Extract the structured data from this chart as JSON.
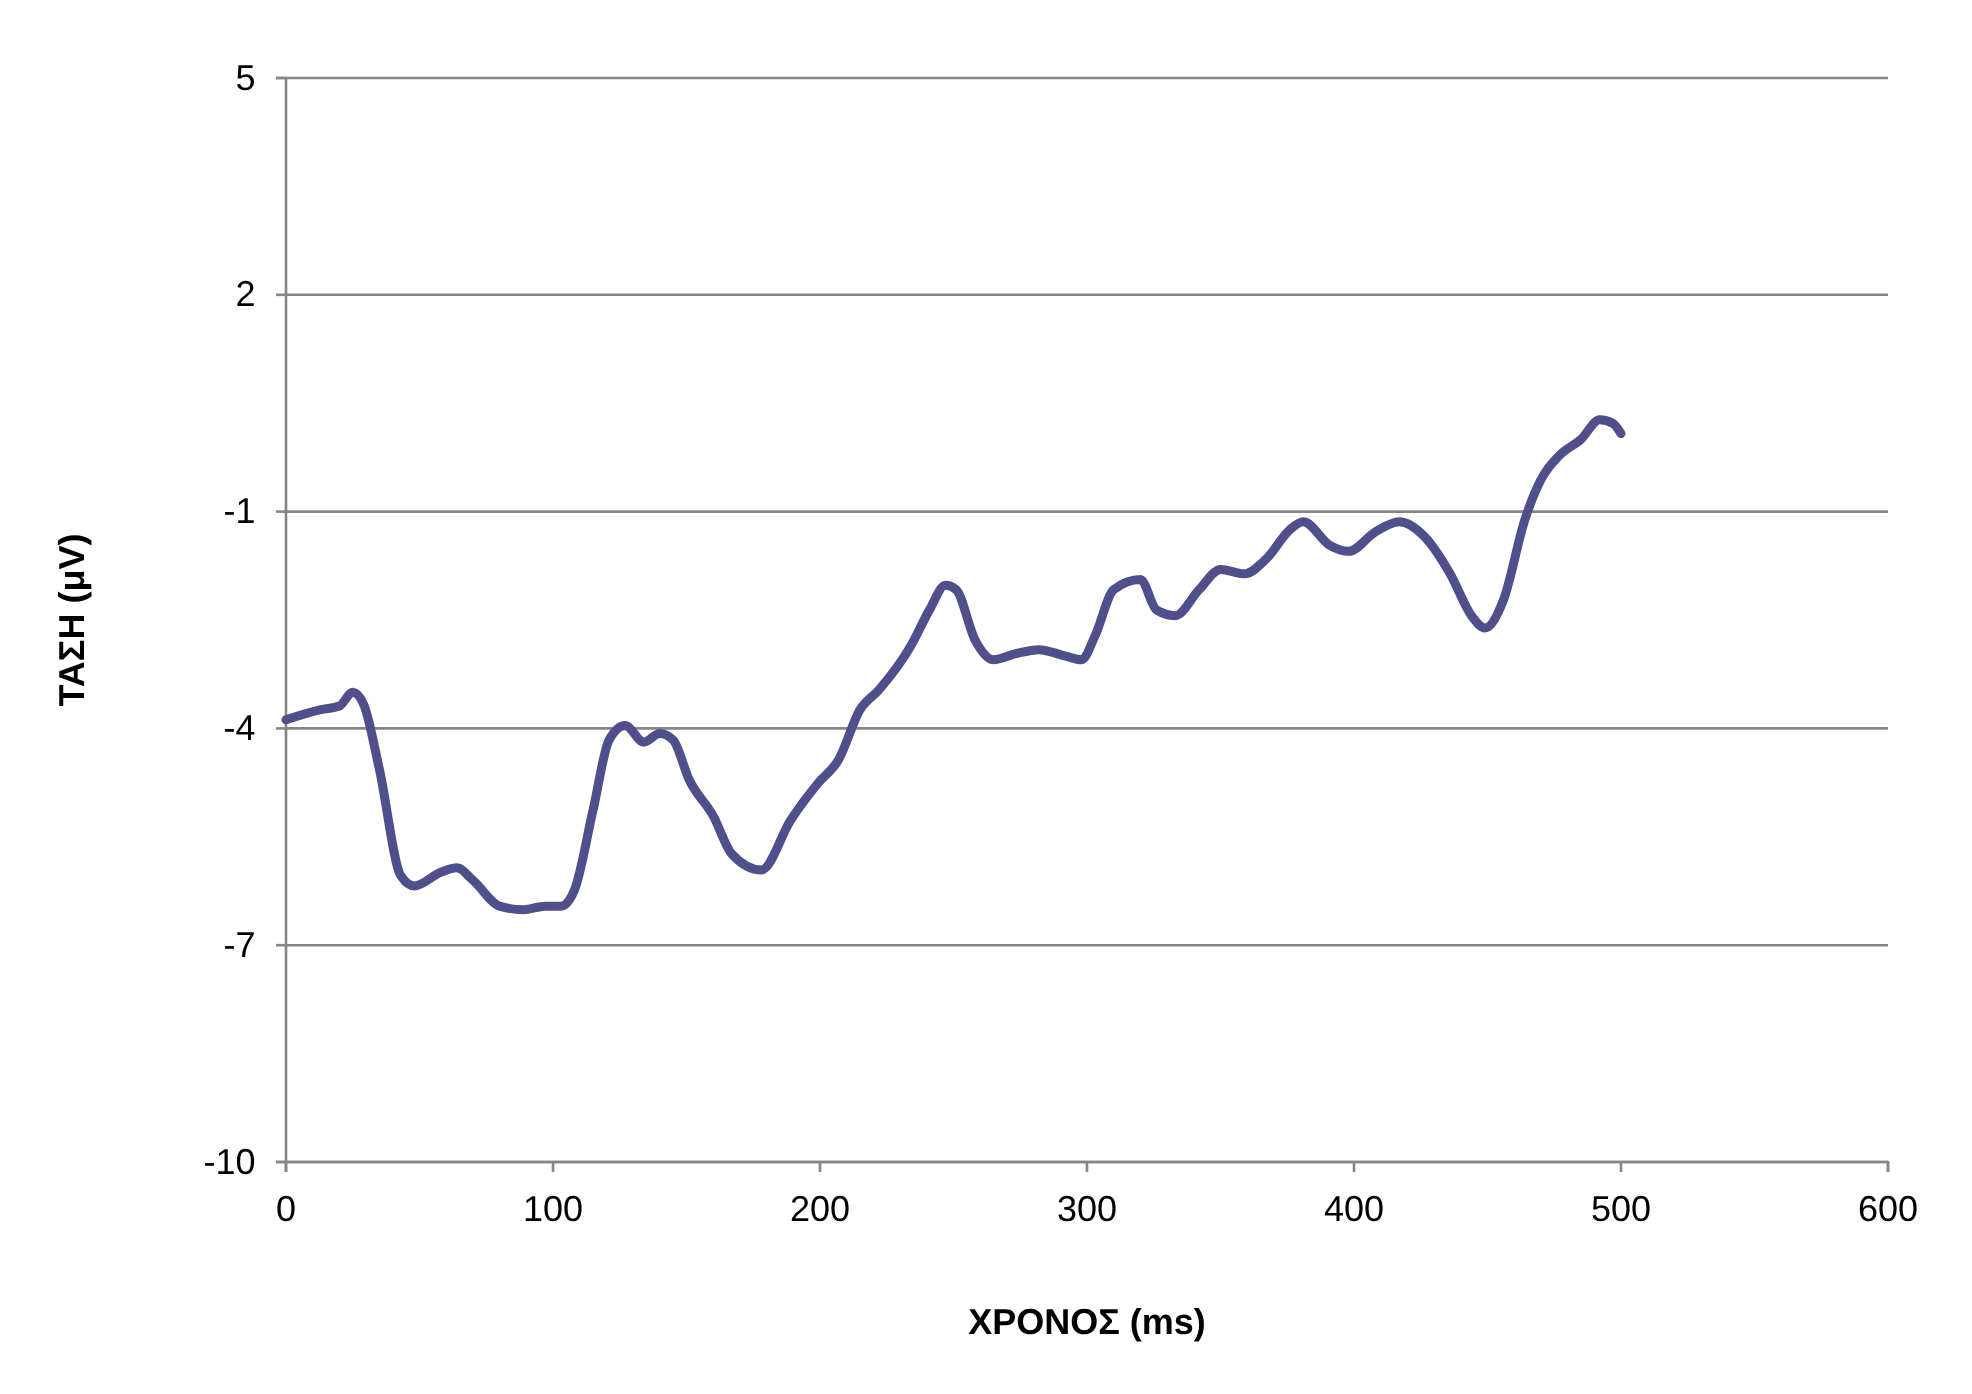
{
  "chart_data": {
    "type": "line",
    "xlabel": "ΧΡΟΝΟΣ  (ms)",
    "ylabel": "ΤΑΣΗ  (μV)",
    "xlim": [
      0,
      600
    ],
    "xticks": [
      0,
      100,
      200,
      300,
      400,
      500,
      600
    ],
    "ylim": [
      -10,
      5
    ],
    "yticks": [
      -10,
      -7,
      -4,
      -1,
      2,
      5
    ],
    "grid": "y",
    "marker": "none",
    "line_style": "solid",
    "series": [
      {
        "color": "#4f4f8b",
        "x": [
          0,
          13,
          20,
          25,
          29,
          35,
          43,
          48,
          58,
          64,
          70,
          80,
          89,
          97,
          103,
          108,
          115,
          121,
          127,
          134,
          140,
          145,
          151,
          160,
          167,
          178,
          189,
          199,
          207,
          215,
          222,
          234,
          241,
          247,
          251,
          258,
          265,
          273,
          282,
          292,
          298,
          303,
          310,
          320,
          326,
          333,
          342,
          350,
          359,
          367,
          376,
          381,
          391,
          398,
          408,
          417,
          426,
          436,
          444,
          449,
          456,
          464,
          470,
          477,
          485,
          492,
          497,
          500
        ],
        "values": [
          -3.88,
          -3.74,
          -3.69,
          -3.5,
          -3.66,
          -4.57,
          -6.04,
          -6.18,
          -5.99,
          -5.93,
          -6.1,
          -6.46,
          -6.51,
          -6.46,
          -6.46,
          -6.24,
          -5.13,
          -4.16,
          -3.96,
          -4.19,
          -4.07,
          -4.16,
          -4.71,
          -5.21,
          -5.74,
          -5.96,
          -5.27,
          -4.77,
          -4.43,
          -3.74,
          -3.47,
          -2.86,
          -2.36,
          -2.02,
          -2.08,
          -2.77,
          -3.05,
          -2.97,
          -2.91,
          -3.0,
          -3.05,
          -2.72,
          -2.08,
          -1.94,
          -2.36,
          -2.44,
          -2.08,
          -1.8,
          -1.86,
          -1.66,
          -1.25,
          -1.14,
          -1.47,
          -1.55,
          -1.28,
          -1.14,
          -1.33,
          -1.86,
          -2.44,
          -2.61,
          -2.22,
          -1.11,
          -0.56,
          -0.22,
          0.0,
          0.27,
          0.22,
          0.08
        ]
      }
    ]
  }
}
